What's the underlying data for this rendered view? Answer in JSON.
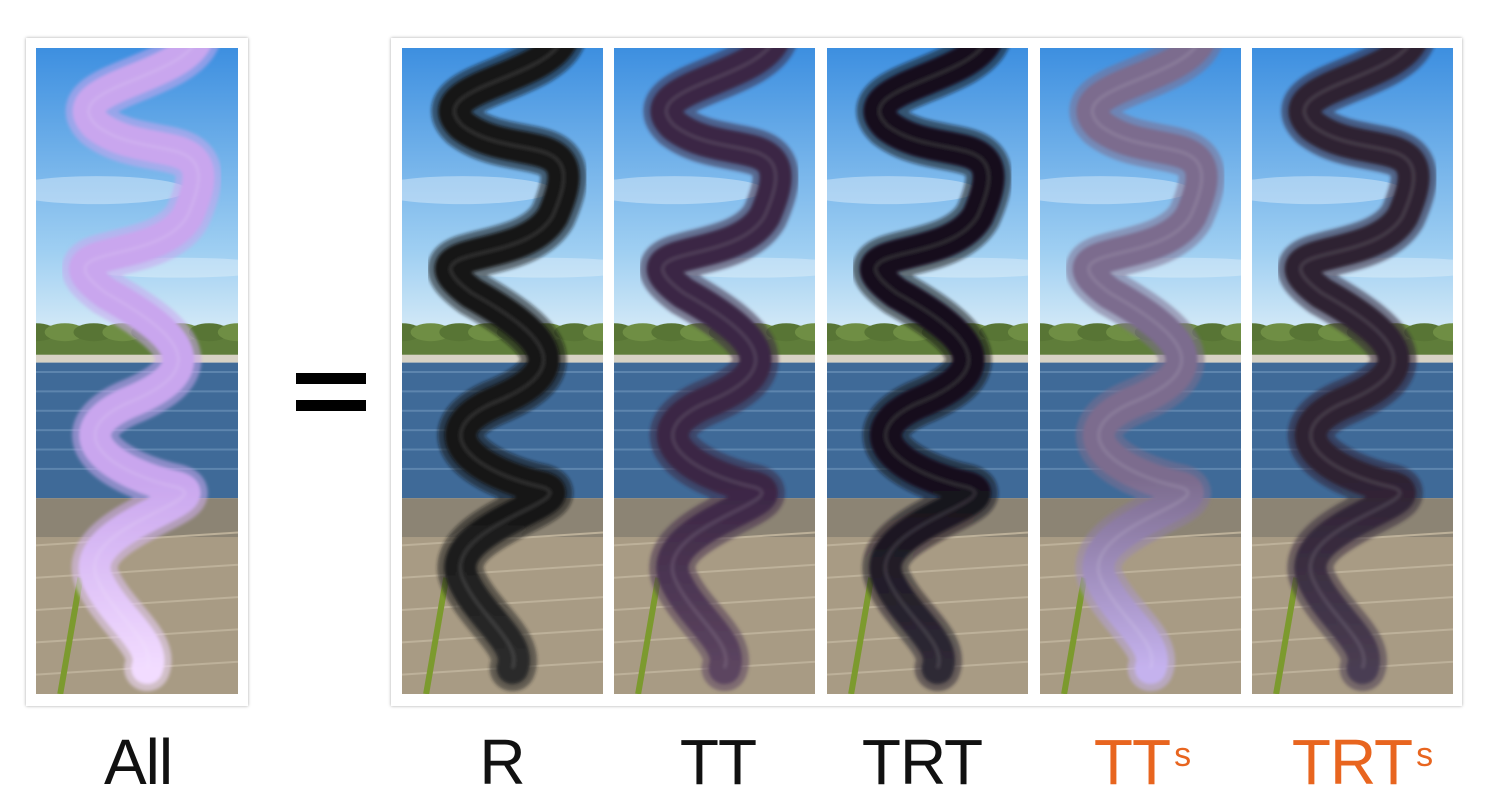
{
  "equals_sign": "=",
  "panels": [
    {
      "id": "all",
      "label": "All",
      "label_sup": "",
      "label_color": "#111111",
      "hair_color": "#c9a6ee",
      "hair_tip": "#f2dcff"
    },
    {
      "id": "r",
      "label": "R",
      "label_sup": "",
      "label_color": "#111111",
      "hair_color": "#141414",
      "hair_tip": "#2b2b2b"
    },
    {
      "id": "tt",
      "label": "TT",
      "label_sup": "",
      "label_color": "#111111",
      "hair_color": "#3a2544",
      "hair_tip": "#5c4560"
    },
    {
      "id": "trt",
      "label": "TRT",
      "label_sup": "",
      "label_color": "#111111",
      "hair_color": "#15101a",
      "hair_tip": "#2f2a36"
    },
    {
      "id": "tts",
      "label": "TT",
      "label_sup": "s",
      "label_color": "#e8651f",
      "hair_color": "#7c6c8e",
      "hair_tip": "#c5b2ee"
    },
    {
      "id": "trts",
      "label": "TRT",
      "label_sup": "s",
      "label_color": "#e8651f",
      "hair_color": "#2e2233",
      "hair_tip": "#4a3d52"
    }
  ]
}
